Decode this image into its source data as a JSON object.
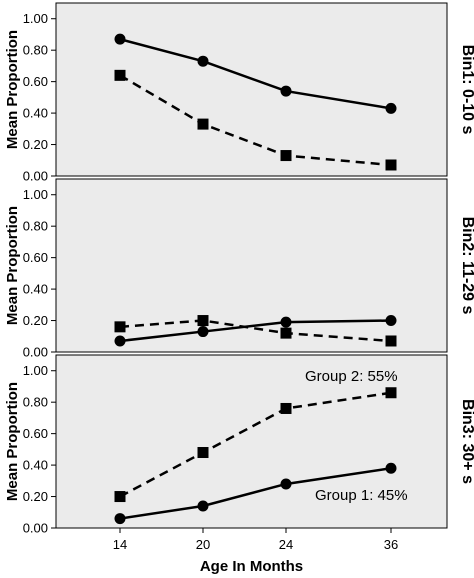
{
  "chart_data": {
    "type": "line",
    "xlabel": "Age In Months",
    "x_ticks": [
      "14",
      "20",
      "24",
      "36"
    ],
    "ylim": [
      0,
      1.1
    ],
    "y_ticks": [
      "0.00",
      "0.20",
      "0.40",
      "0.60",
      "0.80",
      "1.00"
    ],
    "grid": false,
    "colors": {
      "panel_background": "#ebebeb",
      "line": "#000000"
    },
    "panels": [
      {
        "label": "Bin1: 0-10 s",
        "ylabel": "Mean Proportion",
        "series": [
          {
            "marker": "circle",
            "line_style": "solid",
            "values": [
              0.87,
              0.73,
              0.54,
              0.43
            ]
          },
          {
            "marker": "square",
            "line_style": "dashed",
            "values": [
              0.64,
              0.33,
              0.13,
              0.07
            ]
          }
        ],
        "annotations": []
      },
      {
        "label": "Bin2: 11-29 s",
        "ylabel": "Mean Proportion",
        "series": [
          {
            "marker": "circle",
            "line_style": "solid",
            "values": [
              0.07,
              0.13,
              0.19,
              0.2
            ]
          },
          {
            "marker": "square",
            "line_style": "dashed",
            "values": [
              0.16,
              0.2,
              0.12,
              0.07
            ]
          }
        ],
        "annotations": []
      },
      {
        "label": "Bin3: 30+ s",
        "ylabel": "Mean Proportion",
        "series": [
          {
            "marker": "circle",
            "line_style": "solid",
            "values": [
              0.06,
              0.14,
              0.28,
              0.38
            ]
          },
          {
            "marker": "square",
            "line_style": "dashed",
            "values": [
              0.2,
              0.48,
              0.76,
              0.86
            ]
          }
        ],
        "annotations": [
          "Group 2: 55%",
          "Group 1: 45%"
        ]
      }
    ]
  }
}
